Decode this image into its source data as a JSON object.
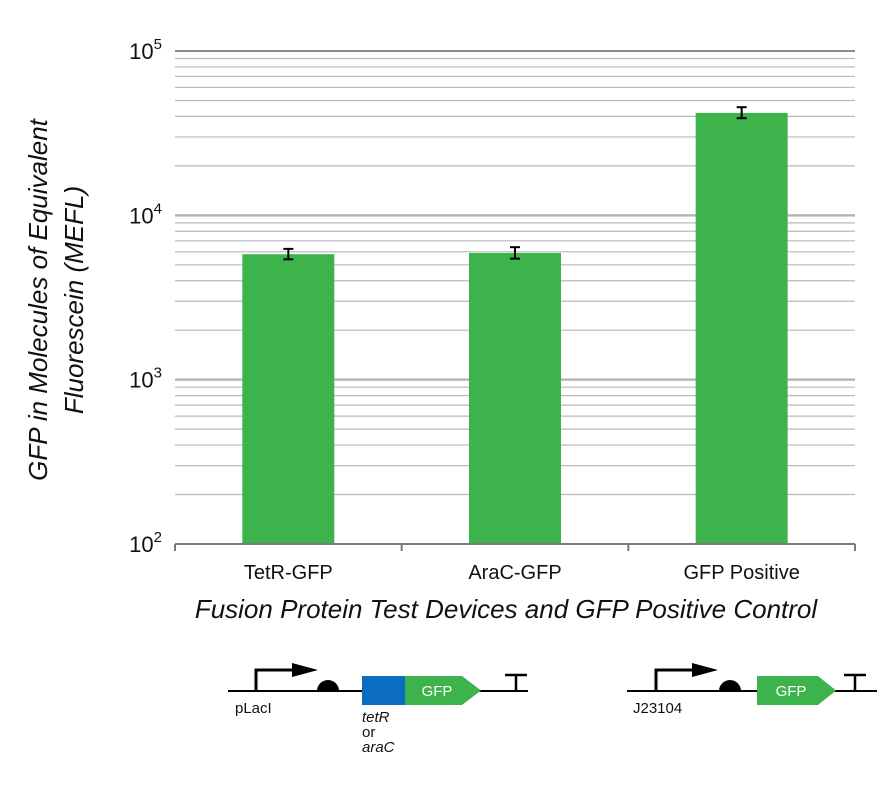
{
  "chart_data": {
    "type": "bar",
    "categories": [
      "TetR-GFP",
      "AraC-GFP",
      "GFP Positive"
    ],
    "values": [
      5800,
      5900,
      42000
    ],
    "error_low": [
      5400,
      5450,
      39000
    ],
    "error_high": [
      6250,
      6400,
      45500
    ],
    "xlabel": "Fusion Protein Test Devices and GFP Positive Control",
    "ylabel_lines": [
      "GFP in Molecules of Equivalent",
      "Fluorescein (MEFL)"
    ],
    "yscale": "log",
    "ylim": [
      100,
      100000
    ],
    "ytick_base": "10",
    "ytick_exponents": [
      "2",
      "3",
      "4",
      "5"
    ],
    "bar_color": "#3cb44b",
    "grid": true
  },
  "diagrams": {
    "left": {
      "promoter": "pLacI",
      "coding": "GFP",
      "fusion_color": "#0b6dbf",
      "fusion_labels": [
        "tetR",
        "or",
        "araC"
      ]
    },
    "right": {
      "promoter": "J23104",
      "coding": "GFP"
    },
    "gfp_color": "#3cb44b"
  }
}
